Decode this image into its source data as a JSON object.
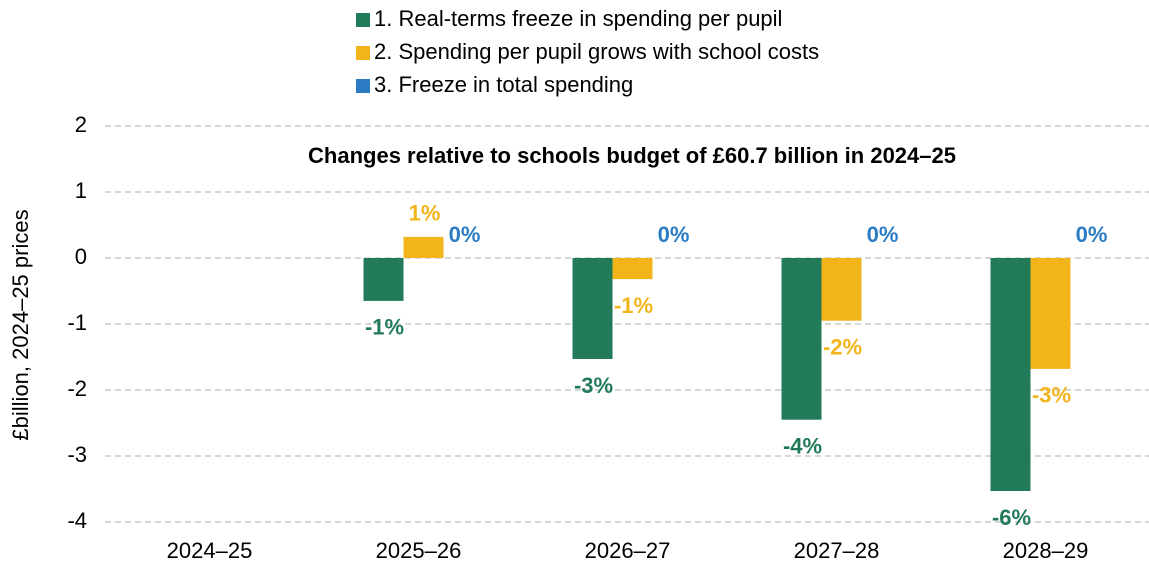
{
  "chart_data": {
    "type": "bar",
    "title": "Changes relative to schools budget of £60.7 billion in 2024–25",
    "y_label": "£billion, 2024–25 prices",
    "categories": [
      "2024–25",
      "2025–26",
      "2026–27",
      "2027–28",
      "2028–29"
    ],
    "series": [
      {
        "name": "1. Real-terms freeze in spending per pupil",
        "color": "#217a58",
        "values": [
          null,
          -0.65,
          -1.53,
          -2.45,
          -3.53
        ],
        "value_labels": [
          null,
          "-1%",
          "-3%",
          "-4%",
          "-6%"
        ]
      },
      {
        "name": "2. Spending per pupil grows with school costs",
        "color": "#f2b41b",
        "values": [
          null,
          0.32,
          -0.32,
          -0.95,
          -1.68
        ],
        "value_labels": [
          null,
          "1%",
          "-1%",
          "-2%",
          "-3%"
        ]
      },
      {
        "name": "3. Freeze in total spending",
        "color": "#2a7bc4",
        "values": [
          null,
          0,
          0,
          0,
          0
        ],
        "value_labels": [
          null,
          "0%",
          "0%",
          "0%",
          "0%"
        ]
      }
    ],
    "ylim": [
      -4,
      2
    ],
    "yticks": [
      -4,
      -3,
      -2,
      -1,
      0,
      1,
      2
    ],
    "grid": true,
    "legend": "top"
  }
}
